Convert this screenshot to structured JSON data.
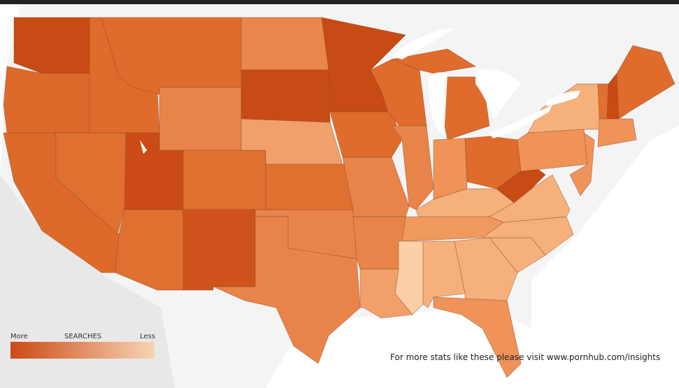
{
  "legend": {
    "more": "More",
    "title": "SEARCHES",
    "less": "Less",
    "colors": [
      "#cc4a16",
      "#f7d4b4"
    ]
  },
  "footer": "For more stats like these please visit www.pornhub.com/insights"
}
